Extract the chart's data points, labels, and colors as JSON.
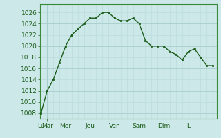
{
  "x_values": [
    0,
    0.5,
    1,
    1.5,
    2,
    2.5,
    3,
    3.5,
    4,
    4.5,
    5,
    5.5,
    6,
    6.5,
    7,
    7.5,
    8,
    8.5,
    9,
    9.5,
    10,
    10.5,
    11,
    11.5,
    12,
    12.5,
    13,
    13.5,
    14
  ],
  "y_values": [
    1008,
    1012,
    1014,
    1017,
    1020,
    1022,
    1023,
    1024,
    1025,
    1025,
    1026,
    1026,
    1025,
    1024.5,
    1024.5,
    1025,
    1024,
    1021,
    1020,
    1020,
    1020,
    1019,
    1018.5,
    1017.5,
    1019,
    1019.5,
    1018,
    1016.5,
    1016.5
  ],
  "x_tick_positions": [
    0,
    0.5,
    2,
    4,
    6,
    8,
    10,
    12,
    14
  ],
  "x_tick_labels": [
    "Lu",
    "Mar",
    "Mer",
    "Jeu",
    "Ven",
    "Sam",
    "Dim",
    "L",
    ""
  ],
  "day_line_positions": [
    0,
    0.5,
    2,
    4,
    6,
    8,
    10,
    12,
    14
  ],
  "ylim": [
    1007,
    1027.5
  ],
  "xlim": [
    -0.1,
    14.3
  ],
  "yticks": [
    1008,
    1010,
    1012,
    1014,
    1016,
    1018,
    1020,
    1022,
    1024,
    1026
  ],
  "line_color": "#1a5c1a",
  "marker_color": "#1a5c1a",
  "bg_color": "#cce8e8",
  "grid_color_major": "#aacece",
  "grid_color_minor": "#bbdddd",
  "tick_label_color": "#1a5c1a",
  "spine_color": "#3a8a3a",
  "font_size": 6.5
}
